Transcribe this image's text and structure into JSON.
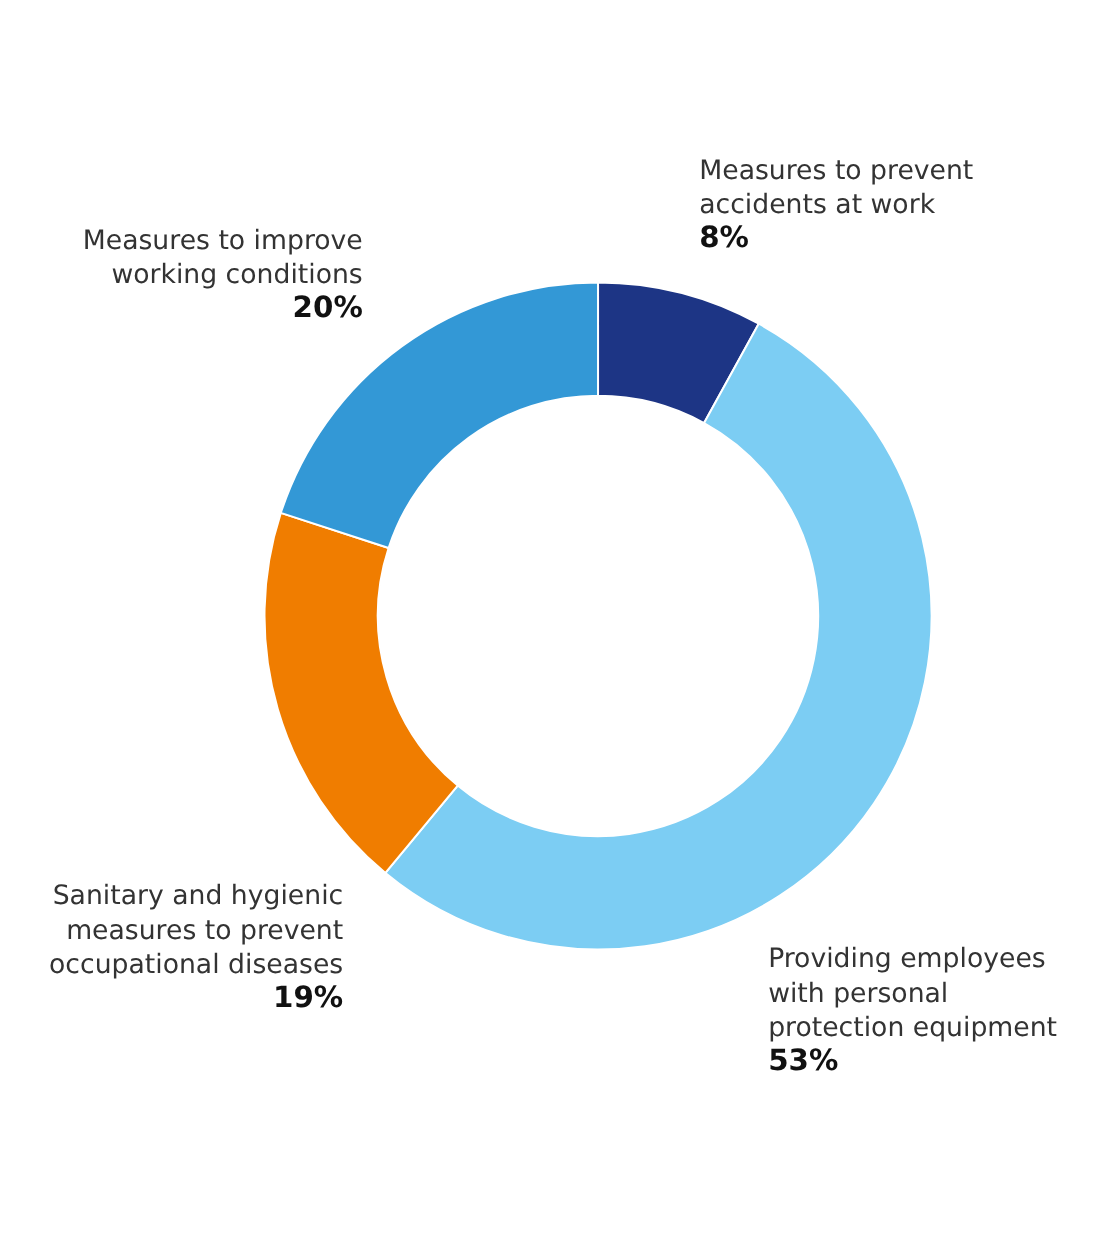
{
  "chart_data": {
    "type": "donut",
    "categories": [
      "Measures to prevent accidents at work",
      "Providing employees with personal protection equipment",
      "Sanitary and hygienic measures to prevent occupational diseases",
      "Measures to improve working conditions"
    ],
    "values": [
      8,
      53,
      19,
      20
    ],
    "value_labels": [
      "8%",
      "53%",
      "19%",
      "20%"
    ],
    "colors": [
      "#1d3585",
      "#7ccdf3",
      "#f07d00",
      "#3398d6"
    ]
  }
}
